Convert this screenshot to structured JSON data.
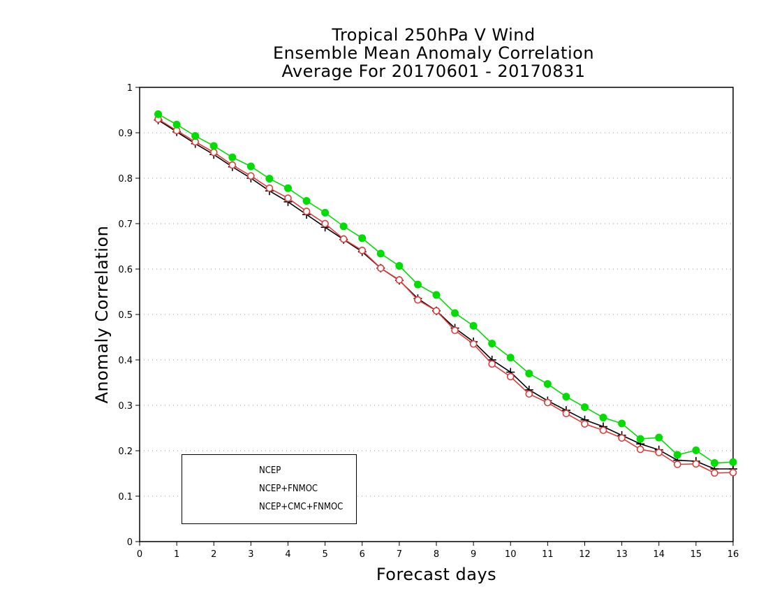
{
  "chart_data": {
    "type": "line",
    "title": [
      "Tropical 250hPa V Wind",
      "Ensemble Mean Anomaly Correlation",
      "Average For 20170601 - 20170831"
    ],
    "xlabel": "Forecast days",
    "ylabel": "Anomaly Correlation",
    "xlim": [
      0,
      16
    ],
    "ylim": [
      0,
      1
    ],
    "xticks": [
      "0",
      "1",
      "2",
      "3",
      "4",
      "5",
      "6",
      "7",
      "8",
      "9",
      "10",
      "11",
      "12",
      "13",
      "14",
      "15",
      "16"
    ],
    "yticks": [
      "0",
      "0.1",
      "0.2",
      "0.3",
      "0.4",
      "0.5",
      "0.6",
      "0.7",
      "0.8",
      "0.9",
      "1"
    ],
    "grid": "horizontal-dotted",
    "legend_position": "bottom-left",
    "x": [
      0.5,
      1,
      1.5,
      2,
      2.5,
      3,
      3.5,
      4,
      4.5,
      5,
      5.5,
      6,
      6.5,
      7,
      7.5,
      8,
      8.5,
      9,
      9.5,
      10,
      10.5,
      11,
      11.5,
      12,
      12.5,
      13,
      13.5,
      14,
      14.5,
      15,
      15.5,
      16
    ],
    "series": [
      {
        "name": "NCEP",
        "color": "#000000",
        "marker": "plus",
        "values": [
          0.928,
          0.902,
          0.876,
          0.852,
          0.825,
          0.8,
          0.772,
          0.748,
          0.72,
          0.692,
          0.665,
          0.638,
          0.602,
          0.575,
          0.535,
          0.508,
          0.47,
          0.44,
          0.4,
          0.373,
          0.334,
          0.31,
          0.289,
          0.268,
          0.253,
          0.234,
          0.215,
          0.202,
          0.179,
          0.177,
          0.16,
          0.16
        ]
      },
      {
        "name": "NCEP+FNMOC",
        "color": "#e03c3c",
        "marker": "open-circle",
        "values": [
          0.93,
          0.905,
          0.88,
          0.857,
          0.829,
          0.805,
          0.778,
          0.756,
          0.727,
          0.7,
          0.666,
          0.641,
          0.602,
          0.576,
          0.532,
          0.508,
          0.465,
          0.435,
          0.391,
          0.363,
          0.325,
          0.306,
          0.282,
          0.259,
          0.245,
          0.228,
          0.203,
          0.196,
          0.17,
          0.171,
          0.151,
          0.152
        ]
      },
      {
        "name": "NCEP+CMC+FNMOC",
        "color": "#00dd00",
        "marker": "filled-circle",
        "values": [
          0.941,
          0.918,
          0.893,
          0.871,
          0.846,
          0.826,
          0.799,
          0.778,
          0.75,
          0.724,
          0.694,
          0.668,
          0.634,
          0.607,
          0.566,
          0.543,
          0.503,
          0.475,
          0.436,
          0.405,
          0.37,
          0.347,
          0.319,
          0.296,
          0.273,
          0.26,
          0.226,
          0.229,
          0.191,
          0.201,
          0.173,
          0.175
        ]
      }
    ]
  }
}
